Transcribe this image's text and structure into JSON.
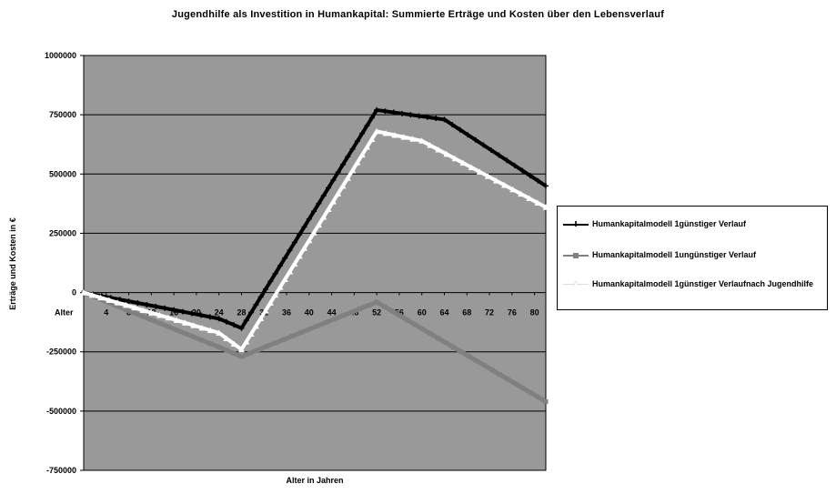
{
  "chart_data": {
    "type": "line",
    "title": "Jugendhilfe als Investition in Humankapital: Summierte Erträge und Kosten über den Lebensverlauf",
    "xlabel": "Alter in Jahren",
    "ylabel": "Erträge und Kosten in €",
    "x_axis_prefix": "Alter",
    "categories": [
      "4",
      "8",
      "12",
      "16",
      "20",
      "24",
      "28",
      "32",
      "36",
      "40",
      "44",
      "48",
      "52",
      "56",
      "60",
      "64",
      "68",
      "72",
      "76",
      "80"
    ],
    "yticks": [
      "1000000",
      "750000",
      "500000",
      "250000",
      "0",
      "-250000",
      "-500000",
      "-750000"
    ],
    "ylim": [
      -750000,
      1000000
    ],
    "grid": "horizontal",
    "plot_background": "#999999",
    "legend_position": "right",
    "series": [
      {
        "name": "Humankapitalmodell 1günstiger Verlauf",
        "color": "#000000",
        "marker": "plus",
        "x": [
          0,
          24,
          28,
          52,
          64,
          82
        ],
        "y": [
          0,
          -110000,
          -150000,
          770000,
          730000,
          450000
        ]
      },
      {
        "name": "Humankapitalmodell 1ungünstiger Verlauf",
        "color": "#808080",
        "marker": "square",
        "x": [
          0,
          24,
          28,
          52,
          82
        ],
        "y": [
          0,
          -230000,
          -270000,
          -40000,
          -460000
        ]
      },
      {
        "name": "Humankapitalmodell 1günstiger Verlaufnach Jugendhilfe",
        "color": "#ffffff",
        "marker": "triangle",
        "x": [
          0,
          24,
          28,
          52,
          60,
          82
        ],
        "y": [
          0,
          -170000,
          -240000,
          680000,
          640000,
          360000
        ]
      }
    ]
  }
}
